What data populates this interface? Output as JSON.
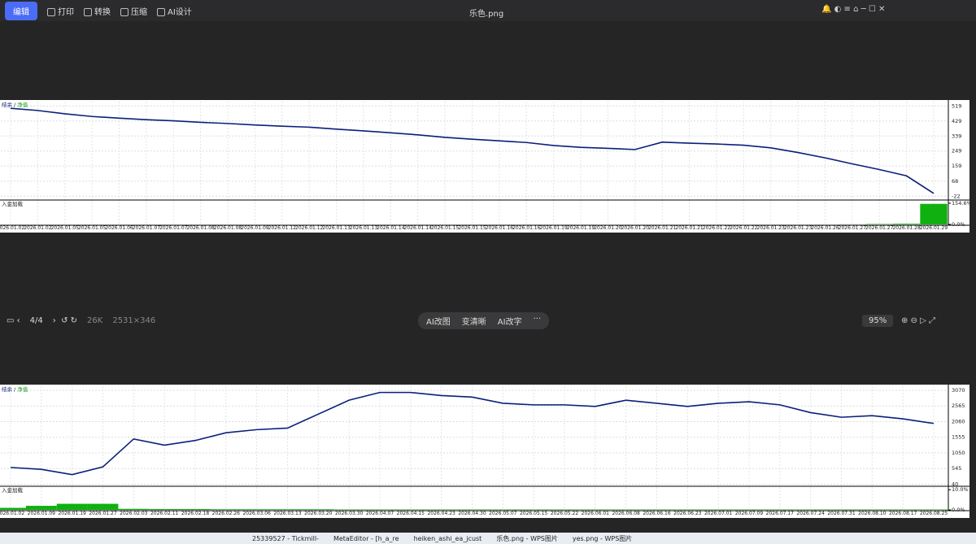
{
  "toolbar": {
    "edit_button": "编辑",
    "actions": [
      "打印",
      "转换",
      "压缩",
      "AI设计"
    ],
    "filename": "乐色.png"
  },
  "viewer_bar": {
    "page": "4/4",
    "size": "26K",
    "dimensions": "2531×346",
    "ai_tools": [
      "AI改图",
      "变清晰",
      "AI改字"
    ],
    "zoom": "95%"
  },
  "charts": [
    {
      "type": "line",
      "legend_separator": "/",
      "series": [
        {
          "name": "结余",
          "color": "#0b1f7a",
          "values": [
            505,
            492,
            472,
            456,
            446,
            437,
            430,
            421,
            414,
            405,
            398,
            392,
            380,
            370,
            358,
            346,
            331,
            320,
            310,
            300,
            282,
            271,
            265,
            258,
            302,
            296,
            291,
            284,
            268,
            240,
            208,
            172,
            138,
            100,
            -5
          ]
        },
        {
          "name": "净值",
          "color": "#1a9a1a"
        }
      ],
      "ylim": [
        -40,
        545
      ],
      "yticks": [
        519,
        429,
        339,
        249,
        159,
        68,
        -22
      ],
      "load": {
        "label": "入金加载",
        "color": "#10b010",
        "ylim": [
          0,
          160
        ],
        "yticks": [
          {
            "value": 154.6,
            "label": "154.6%"
          },
          {
            "value": 0,
            "label": "0.0%"
          }
        ],
        "values": [
          0,
          0,
          0,
          0,
          0,
          0,
          0,
          0,
          0,
          0,
          0,
          0,
          0,
          0,
          0,
          0,
          0,
          0,
          0,
          0,
          0,
          0,
          0,
          0,
          0,
          0,
          0,
          0,
          0,
          0,
          0,
          1,
          3,
          5,
          150
        ]
      },
      "categories": [
        "2026.01.02",
        "2026.01.02",
        "2026.01.05",
        "2026.01.05",
        "2026.01.06",
        "2026.01.07",
        "2026.01.07",
        "2026.01.08",
        "2026.01.08",
        "2026.01.09",
        "2026.01.12",
        "2026.01.12",
        "2026.01.13",
        "2026.01.13",
        "2026.01.14",
        "2026.01.14",
        "2026.01.15",
        "2026.01.15",
        "2026.01.16",
        "2026.01.16",
        "2026.01.19",
        "2026.01.19",
        "2026.01.20",
        "2026.01.20",
        "2026.01.21",
        "2026.01.21",
        "2026.01.22",
        "2026.01.22",
        "2026.01.23",
        "2026.01.23",
        "2026.01.26",
        "2026.01.27",
        "2026.01.27",
        "2026.01.28",
        "2026.01.29"
      ]
    },
    {
      "type": "line",
      "legend_separator": "/",
      "series": [
        {
          "name": "结余",
          "color": "#0b1f7a",
          "values": [
            580,
            520,
            350,
            600,
            1500,
            1300,
            1450,
            1700,
            1800,
            1850,
            2300,
            2750,
            3000,
            3000,
            2900,
            2850,
            2650,
            2600,
            2600,
            2550,
            2750,
            2650,
            2550,
            2650,
            2700,
            2600,
            2350,
            2200,
            2250,
            2150,
            2000
          ]
        },
        {
          "name": "净值",
          "color": "#1a9a1a"
        }
      ],
      "ylim": [
        0,
        3200
      ],
      "yticks": [
        3070,
        2565,
        2060,
        1555,
        1050,
        545,
        40
      ],
      "load": {
        "label": "入金加载",
        "color": "#10b010",
        "ylim": [
          0,
          10.5
        ],
        "yticks": [
          {
            "value": 10,
            "label": "10.0%"
          },
          {
            "value": 0,
            "label": "0.0%"
          }
        ],
        "values": [
          1,
          2,
          3,
          3,
          0.5,
          0.4,
          0.4,
          0.3,
          0.3,
          0.3,
          0.3,
          0.2,
          0.2,
          0.2,
          0.2,
          0.2,
          0.2,
          0.2,
          0.2,
          0.2,
          0.2,
          0.2,
          0.2,
          0.2,
          0.2,
          0.2,
          0.2,
          0.2,
          0.2,
          0.2,
          0.2
        ]
      },
      "categories": [
        "2026.01.02",
        "2026.01.09",
        "2026.01.19",
        "2026.01.27",
        "2026.02.03",
        "2026.02.11",
        "2026.02.18",
        "2026.02.26",
        "2026.03.06",
        "2026.03.13",
        "2026.03.20",
        "2026.03.30",
        "2026.04.07",
        "2026.04.15",
        "2026.04.23",
        "2026.04.30",
        "2026.05.07",
        "2026.05.15",
        "2026.05.22",
        "2026.06.01",
        "2026.06.08",
        "2026.06.16",
        "2026.06.23",
        "2026.07.01",
        "2026.07.09",
        "2026.07.17",
        "2026.07.24",
        "2026.07.31",
        "2026.08.10",
        "2026.08.17",
        "2026.08.25"
      ]
    }
  ],
  "taskbar": {
    "windows": [
      "25339527 - Tickmill-",
      "MetaEditor - [h_a_re",
      "heiken_ashi_ea_jcust",
      "乐色.png - WPS图片",
      "yes.png - WPS图片"
    ]
  }
}
